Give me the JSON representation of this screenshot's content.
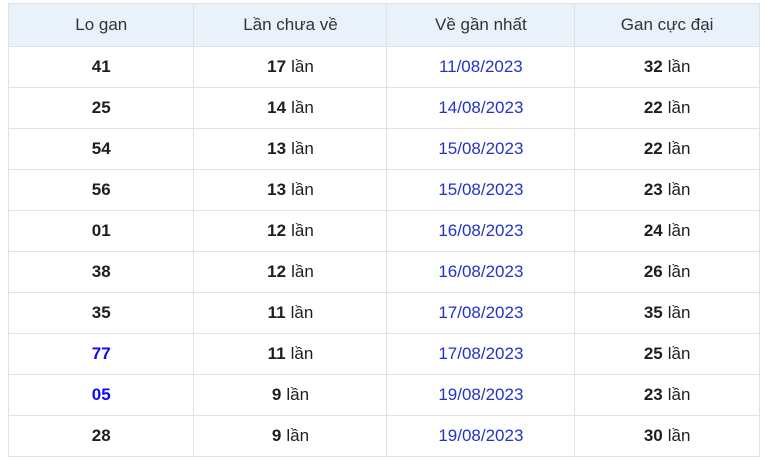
{
  "header": {
    "columns": [
      "Lo gan",
      "Lần chưa về",
      "Về gần nhất",
      "Gan cực đại"
    ]
  },
  "unit_label": "lần",
  "rows": [
    {
      "number": "41",
      "number_is_link": false,
      "missed": "17",
      "last_date": "11/08/2023",
      "max_gan": "32"
    },
    {
      "number": "25",
      "number_is_link": false,
      "missed": "14",
      "last_date": "14/08/2023",
      "max_gan": "22"
    },
    {
      "number": "54",
      "number_is_link": false,
      "missed": "13",
      "last_date": "15/08/2023",
      "max_gan": "22"
    },
    {
      "number": "56",
      "number_is_link": false,
      "missed": "13",
      "last_date": "15/08/2023",
      "max_gan": "23"
    },
    {
      "number": "01",
      "number_is_link": false,
      "missed": "12",
      "last_date": "16/08/2023",
      "max_gan": "24"
    },
    {
      "number": "38",
      "number_is_link": false,
      "missed": "12",
      "last_date": "16/08/2023",
      "max_gan": "26"
    },
    {
      "number": "35",
      "number_is_link": false,
      "missed": "11",
      "last_date": "17/08/2023",
      "max_gan": "35"
    },
    {
      "number": "77",
      "number_is_link": true,
      "missed": "11",
      "last_date": "17/08/2023",
      "max_gan": "25"
    },
    {
      "number": "05",
      "number_is_link": true,
      "missed": "9",
      "last_date": "19/08/2023",
      "max_gan": "23"
    },
    {
      "number": "28",
      "number_is_link": false,
      "missed": "9",
      "last_date": "19/08/2023",
      "max_gan": "30"
    }
  ],
  "colors": {
    "header_bg": "#e9f1fa",
    "header_text": "#333333",
    "border": "#e2e2e2",
    "text": "#1e1e1e",
    "date_link": "#2233cc",
    "number_link": "#0a0aff"
  }
}
